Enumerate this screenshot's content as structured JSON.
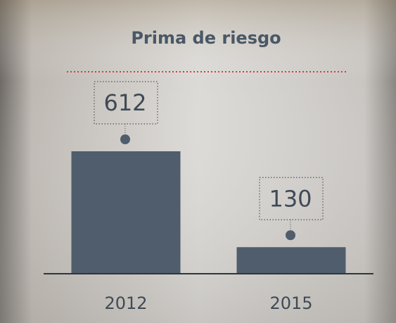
{
  "chart_data": {
    "type": "bar",
    "title": "Prima de riesgo",
    "categories": [
      "2012",
      "2015"
    ],
    "values": [
      612,
      130
    ],
    "color": "#4f5d6c"
  }
}
